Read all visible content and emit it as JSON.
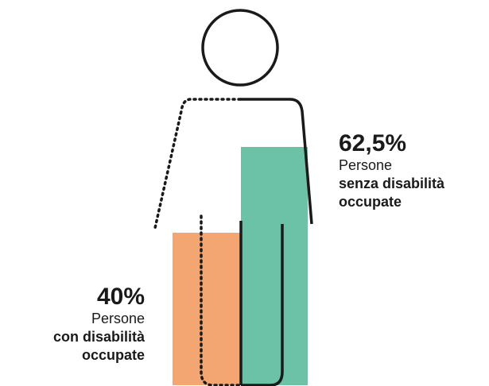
{
  "chart_data": {
    "type": "bar",
    "categories": [
      [
        "Persone",
        "con disabilità",
        "occupate"
      ],
      [
        "Persone",
        "senza disabilità",
        "occupate"
      ]
    ],
    "values": [
      40,
      62.5
    ],
    "value_labels": [
      "40%",
      "62,5%"
    ],
    "colors": [
      "#f3a572",
      "#6cc2a6"
    ],
    "ylim": [
      0,
      100
    ]
  }
}
